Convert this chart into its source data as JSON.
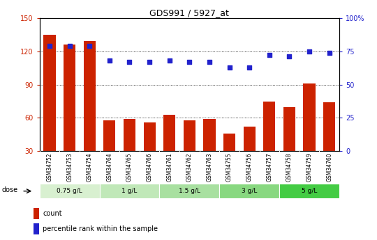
{
  "title": "GDS991 / 5927_at",
  "samples": [
    "GSM34752",
    "GSM34753",
    "GSM34754",
    "GSM34764",
    "GSM34765",
    "GSM34766",
    "GSM34761",
    "GSM34762",
    "GSM34763",
    "GSM34755",
    "GSM34756",
    "GSM34757",
    "GSM34758",
    "GSM34759",
    "GSM34760"
  ],
  "bar_values": [
    135,
    126,
    129,
    58,
    59,
    56,
    63,
    58,
    59,
    46,
    52,
    75,
    70,
    91,
    74
  ],
  "scatter_values": [
    79,
    79,
    79,
    68,
    67,
    67,
    68,
    67,
    67,
    63,
    63,
    72,
    71,
    75,
    74
  ],
  "ylim": [
    30,
    150
  ],
  "y2lim": [
    0,
    100
  ],
  "yticks": [
    30,
    60,
    90,
    120,
    150
  ],
  "y2ticks": [
    0,
    25,
    50,
    75,
    100
  ],
  "bar_color": "#cc2200",
  "scatter_color": "#2222cc",
  "dose_groups": [
    {
      "label": "0.75 g/L",
      "start": 0,
      "end": 3,
      "color": "#d8f0d0"
    },
    {
      "label": "1 g/L",
      "start": 3,
      "end": 6,
      "color": "#c0e8b8"
    },
    {
      "label": "1.5 g/L",
      "start": 6,
      "end": 9,
      "color": "#a8e0a0"
    },
    {
      "label": "3 g/L",
      "start": 9,
      "end": 12,
      "color": "#88d880"
    },
    {
      "label": "5 g/L",
      "start": 12,
      "end": 15,
      "color": "#44cc44"
    }
  ],
  "bg_color": "#d0d0d0",
  "legend_count_label": "count",
  "legend_pct_label": "percentile rank within the sample"
}
